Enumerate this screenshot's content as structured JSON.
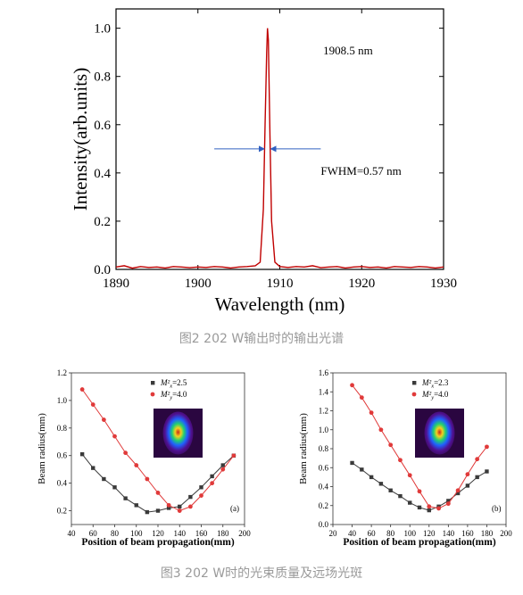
{
  "chart_data": [
    {
      "type": "line",
      "xlabel": "Wavelength (nm)",
      "ylabel": "Intensity(arb.units)",
      "xlim": [
        1890,
        1930
      ],
      "ylim": [
        0,
        1.08
      ],
      "xticks": [
        1890,
        1900,
        1910,
        1920,
        1930
      ],
      "yticks": [
        0.0,
        0.2,
        0.4,
        0.6,
        0.8,
        1.0
      ],
      "ytick_labels": [
        "0.0",
        "0.2",
        "0.4",
        "0.6",
        "0.8",
        "1.0"
      ],
      "color": "#c00000",
      "peak_label": "1908.5 nm",
      "fwhm_label": "FWHM=0.57 nm",
      "fwhm_arrow_y": 0.5,
      "fwhm_arrow_left": [
        1902,
        1908.2
      ],
      "fwhm_arrow_right": [
        1915,
        1908.8
      ],
      "series": [
        {
          "x": [
            1890,
            1891,
            1892,
            1893,
            1894,
            1895,
            1896,
            1897,
            1898,
            1899,
            1900,
            1901,
            1902,
            1903,
            1904,
            1905,
            1906,
            1907,
            1907.6,
            1908.0,
            1908.2,
            1908.4,
            1908.5,
            1908.6,
            1908.8,
            1909.0,
            1909.4,
            1910,
            1911,
            1912,
            1913,
            1914,
            1915,
            1916,
            1917,
            1918,
            1919,
            1920,
            1921,
            1922,
            1923,
            1924,
            1925,
            1926,
            1927,
            1928,
            1929,
            1930
          ],
          "y": [
            0.01,
            0.015,
            0.005,
            0.012,
            0.008,
            0.01,
            0.006,
            0.012,
            0.01,
            0.007,
            0.01,
            0.008,
            0.012,
            0.01,
            0.006,
            0.01,
            0.012,
            0.015,
            0.03,
            0.25,
            0.6,
            0.9,
            1.0,
            0.95,
            0.55,
            0.2,
            0.03,
            0.012,
            0.008,
            0.012,
            0.01,
            0.015,
            0.007,
            0.01,
            0.012,
            0.006,
            0.01,
            0.012,
            0.008,
            0.01,
            0.006,
            0.012,
            0.01,
            0.008,
            0.012,
            0.01,
            0.006,
            0.01
          ]
        }
      ]
    },
    {
      "type": "scatter",
      "xlabel": "Position of beam propagation(mm)",
      "ylabel": "Beam radius(mm)",
      "xlim": [
        40,
        200
      ],
      "ylim": [
        0.1,
        1.2
      ],
      "xticks": [
        40,
        60,
        80,
        100,
        120,
        140,
        160,
        180,
        200
      ],
      "yticks": [
        0.2,
        0.4,
        0.6,
        0.8,
        1.0,
        1.2
      ],
      "ytick_labels": [
        "0.2",
        "0.4",
        "0.6",
        "0.8",
        "1.0",
        "1.2"
      ],
      "panel_label": "(a)",
      "legend_position": "top-right",
      "series": [
        {
          "name_main": "M²",
          "name_sub": "x",
          "name_tail": "=2.5",
          "color": "#3a3a3a",
          "marker": "square",
          "x": [
            50,
            60,
            70,
            80,
            90,
            100,
            110,
            120,
            130,
            140,
            150,
            160,
            170,
            180,
            190
          ],
          "y": [
            0.61,
            0.51,
            0.43,
            0.37,
            0.29,
            0.24,
            0.19,
            0.2,
            0.22,
            0.23,
            0.3,
            0.37,
            0.45,
            0.53,
            0.6
          ]
        },
        {
          "name_main": "M²",
          "name_sub": "y",
          "name_tail": "=4.0",
          "color": "#e03a3a",
          "marker": "circle",
          "x": [
            50,
            60,
            70,
            80,
            90,
            100,
            110,
            120,
            130,
            140,
            150,
            160,
            170,
            180,
            190
          ],
          "y": [
            1.08,
            0.97,
            0.86,
            0.74,
            0.62,
            0.53,
            0.43,
            0.33,
            0.24,
            0.2,
            0.23,
            0.31,
            0.4,
            0.5,
            0.6
          ]
        }
      ]
    },
    {
      "type": "scatter",
      "xlabel": "Position of beam propagation(mm)",
      "ylabel": "Beam radius(mm)",
      "xlim": [
        20,
        200
      ],
      "ylim": [
        0.0,
        1.6
      ],
      "xticks": [
        20,
        40,
        60,
        80,
        100,
        120,
        140,
        160,
        180,
        200
      ],
      "yticks": [
        0.0,
        0.2,
        0.4,
        0.6,
        0.8,
        1.0,
        1.2,
        1.4,
        1.6
      ],
      "ytick_labels": [
        "0.0",
        "0.2",
        "0.4",
        "0.6",
        "0.8",
        "1.0",
        "1.2",
        "1.4",
        "1.6"
      ],
      "panel_label": "(b)",
      "legend_position": "top-right",
      "series": [
        {
          "name_main": "M²",
          "name_sub": "x",
          "name_tail": "=2.3",
          "color": "#3a3a3a",
          "marker": "square",
          "x": [
            40,
            50,
            60,
            70,
            80,
            90,
            100,
            110,
            120,
            130,
            140,
            150,
            160,
            170,
            180
          ],
          "y": [
            0.65,
            0.58,
            0.5,
            0.43,
            0.36,
            0.3,
            0.23,
            0.18,
            0.15,
            0.19,
            0.25,
            0.33,
            0.41,
            0.5,
            0.56
          ]
        },
        {
          "name_main": "M²",
          "name_sub": "y",
          "name_tail": "=4.0",
          "color": "#e03a3a",
          "marker": "circle",
          "x": [
            40,
            50,
            60,
            70,
            80,
            90,
            100,
            110,
            120,
            130,
            140,
            150,
            160,
            170,
            180
          ],
          "y": [
            1.47,
            1.34,
            1.18,
            1.0,
            0.84,
            0.68,
            0.52,
            0.35,
            0.19,
            0.17,
            0.22,
            0.36,
            0.53,
            0.69,
            0.82
          ]
        }
      ]
    }
  ],
  "captions": {
    "fig2": "图2  202 W输出时的输出光谱",
    "fig3": "图3  202 W时的光束质量及远场光斑"
  }
}
